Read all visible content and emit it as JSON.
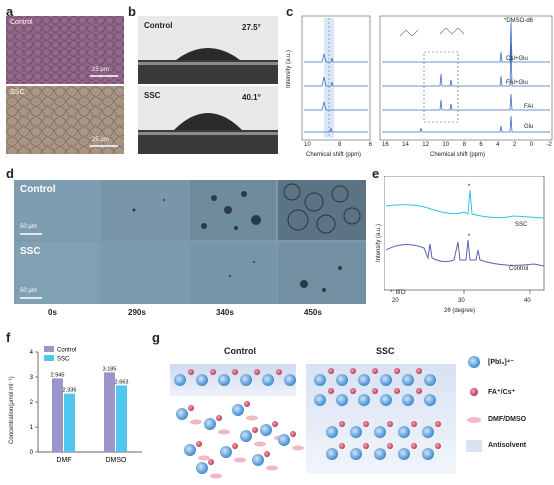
{
  "panels": {
    "a": "a",
    "b": "b",
    "c": "c",
    "d": "d",
    "e": "e",
    "f": "f",
    "g": "g"
  },
  "panel_a": {
    "top_label": "Control",
    "bottom_label": "SSC",
    "top_scale": "25 μm",
    "bottom_scale": "25 μm"
  },
  "panel_b": {
    "top_label": "Control",
    "top_angle": "27.5°",
    "bottom_label": "SSC",
    "bottom_angle": "40.1°"
  },
  "panel_c": {
    "ylabel": "Intensity (a.u.)",
    "left_xlabel": "Chemical shift (ppm)",
    "right_xlabel": "Chemical shift (ppm)",
    "left_ticks": [
      "10",
      "8",
      "6"
    ],
    "right_ticks": [
      "16",
      "14",
      "12",
      "10",
      "8",
      "6",
      "4",
      "2",
      "0",
      "-2"
    ],
    "traces": [
      "CsI+Glu",
      "FAI+Glu",
      "FAI",
      "Glu"
    ],
    "solvent_label": "*DMSO-d6"
  },
  "panel_d": {
    "row_labels": [
      "Control",
      "SSC"
    ],
    "scale_labels": [
      "50 μm",
      "50 μm"
    ],
    "times": [
      "0s",
      "290s",
      "340s",
      "450s"
    ]
  },
  "panel_e": {
    "ylabel": "Intensity (a.u.)",
    "xlabel": "2θ (degree)",
    "xticks": [
      "20",
      "30",
      "40"
    ],
    "series": [
      "SSC",
      "Control"
    ],
    "legend": "*: ITO"
  },
  "chart_data": {
    "type": "bar",
    "categories": [
      "DMF",
      "DMSO"
    ],
    "series": [
      {
        "name": "Control",
        "values": [
          2.945,
          3.185
        ]
      },
      {
        "name": "SSC",
        "values": [
          2.336,
          2.663
        ]
      }
    ],
    "value_labels": [
      [
        "2.945",
        "3.185"
      ],
      [
        "2.336",
        "2.663"
      ]
    ],
    "title": "",
    "xlabel": "",
    "ylabel": "Concentration(μmol ml⁻¹)",
    "ylim": [
      0,
      4
    ],
    "yticks": [
      "0",
      "1",
      "2",
      "3",
      "4"
    ],
    "legend_position": "top-left",
    "colors": {
      "Control": "#9a96cc",
      "SSC": "#52c6ee"
    }
  },
  "panel_g": {
    "left_title": "Control",
    "right_title": "SSC",
    "legend": [
      "[PbI₆]⁴⁻",
      "FA⁺/Cs⁺",
      "DMF/DMSO",
      "Antisolvent"
    ]
  }
}
